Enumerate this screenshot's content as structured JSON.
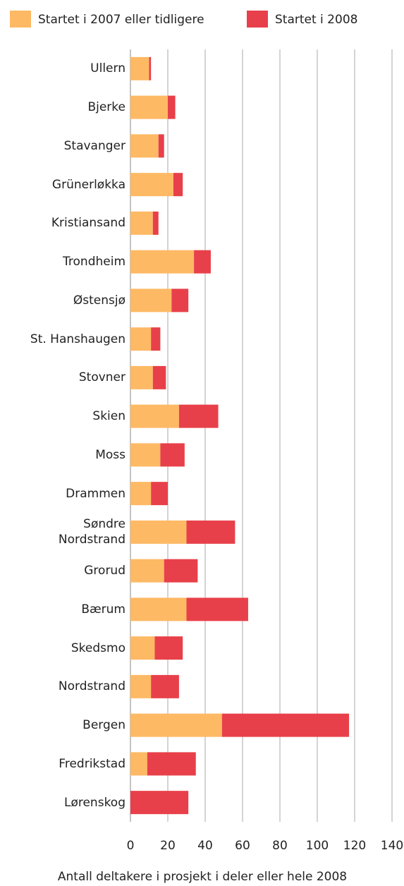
{
  "chart_data": {
    "type": "stacked-barh",
    "x_label": "Antall deltakere i prosjekt i deler eller hele 2008",
    "categories": [
      "Ullern",
      "Bjerke",
      "Stavanger",
      "Grünerløkka",
      "Kristiansand",
      "Trondheim",
      "Østensjø",
      "St. Hanshaugen",
      "Stovner",
      "Skien",
      "Moss",
      "Drammen",
      "Søndre\nNordstrand",
      "Grorud",
      "Bærum",
      "Skedsmo",
      "Nordstrand",
      "Bergen",
      "Fredrikstad",
      "Lørenskog"
    ],
    "series": [
      {
        "name": "Startet i 2007 eller tidligere",
        "color": "#fdb964",
        "values": [
          10,
          20,
          15,
          23,
          12,
          34,
          22,
          11,
          12,
          26,
          16,
          11,
          30,
          18,
          30,
          13,
          11,
          49,
          9,
          0
        ]
      },
      {
        "name": "Startet i 2008",
        "color": "#e8404a",
        "values": [
          1,
          4,
          3,
          5,
          3,
          9,
          9,
          5,
          7,
          21,
          13,
          9,
          26,
          18,
          33,
          15,
          15,
          68,
          26,
          31
        ]
      }
    ],
    "xlim": [
      0,
      140
    ],
    "xticks": [
      0,
      20,
      40,
      60,
      80,
      100,
      120,
      140
    ],
    "grid": true
  }
}
